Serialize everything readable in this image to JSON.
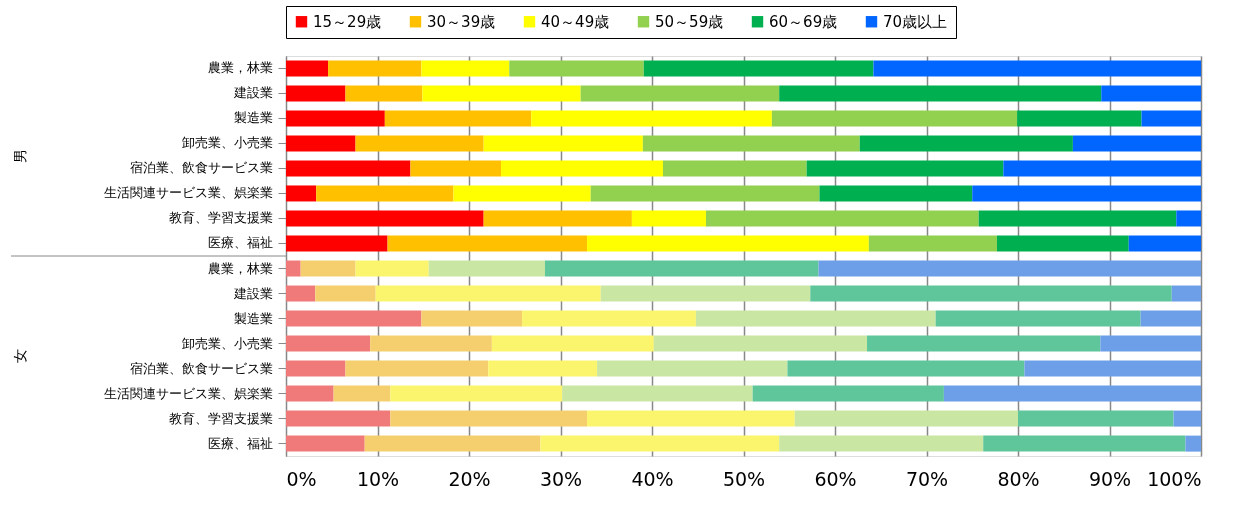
{
  "chart_data": {
    "type": "bar",
    "orientation": "horizontal",
    "stacked": true,
    "categories": [
      "農業，林業",
      "建設業",
      "製造業",
      "卸売業、小売業",
      "宿泊業、飲食サービス業",
      "生活関連サービス業、娯楽業",
      "教育、学習支援業",
      "医療、福祉",
      "農業，林業",
      "建設業",
      "製造業",
      "卸売業、小売業",
      "宿泊業、飲食サービス業",
      "生活関連サービス業、娯楽業",
      "教育、学習支援業",
      "医療、福祉"
    ],
    "annotations": [
      "男",
      "女"
    ],
    "series": [
      {
        "name": "15～29歳",
        "color": "#ff0000",
        "colors": [
          "#ff0000",
          "#ff0000",
          "#ff0000",
          "#ff0000",
          "#ff0000",
          "#ff0000",
          "#ff0000",
          "#ff0000",
          "#f07a7a",
          "#f07a7a",
          "#f07a7a",
          "#f07a7a",
          "#f07a7a",
          "#f07a7a",
          "#f07a7a",
          "#f07a7a"
        ],
        "values": [
          4.6,
          6.5,
          10.8,
          7.6,
          13.6,
          3.3,
          21.6,
          11.1,
          1.6,
          3.2,
          14.8,
          9.2,
          6.5,
          5.2,
          11.4,
          8.6
        ]
      },
      {
        "name": "30～39歳",
        "color": "#ffc000",
        "colors": [
          "#ffc000",
          "#ffc000",
          "#ffc000",
          "#ffc000",
          "#ffc000",
          "#ffc000",
          "#ffc000",
          "#ffc000",
          "#f5cf6e",
          "#f5cf6e",
          "#f5cf6e",
          "#f5cf6e",
          "#f5cf6e",
          "#f5cf6e",
          "#f5cf6e",
          "#f5cf6e"
        ],
        "values": [
          10.2,
          8.4,
          16.0,
          14.0,
          9.9,
          15.0,
          16.2,
          21.8,
          6.0,
          6.6,
          11.0,
          13.3,
          15.6,
          6.2,
          21.5,
          19.2
        ]
      },
      {
        "name": "40～49歳",
        "color": "#ffff00",
        "colors": [
          "#ffff00",
          "#ffff00",
          "#ffff00",
          "#ffff00",
          "#ffff00",
          "#ffff00",
          "#ffff00",
          "#ffff00",
          "#fbf56e",
          "#fbf56e",
          "#fbf56e",
          "#fbf56e",
          "#fbf56e",
          "#fbf56e",
          "#fbf56e",
          "#fbf56e"
        ],
        "values": [
          9.6,
          17.3,
          26.3,
          17.4,
          17.7,
          15.0,
          8.1,
          30.8,
          8.0,
          24.6,
          19.0,
          17.7,
          11.9,
          18.8,
          22.7,
          26.1
        ]
      },
      {
        "name": "50～59歳",
        "color": "#92d050",
        "colors": [
          "#92d050",
          "#92d050",
          "#92d050",
          "#92d050",
          "#92d050",
          "#92d050",
          "#92d050",
          "#92d050",
          "#c9e6a3",
          "#c9e6a3",
          "#c9e6a3",
          "#c9e6a3",
          "#c9e6a3",
          "#c9e6a3",
          "#c9e6a3",
          "#c9e6a3"
        ],
        "values": [
          14.7,
          21.7,
          26.8,
          23.7,
          15.7,
          25.0,
          29.8,
          14.0,
          12.7,
          22.9,
          26.2,
          23.3,
          20.8,
          20.8,
          24.4,
          22.3
        ]
      },
      {
        "name": "60～69歳",
        "color": "#00b050",
        "colors": [
          "#00b050",
          "#00b050",
          "#00b050",
          "#00b050",
          "#00b050",
          "#00b050",
          "#00b050",
          "#00b050",
          "#5ec69a",
          "#5ec69a",
          "#5ec69a",
          "#5ec69a",
          "#5ec69a",
          "#5ec69a",
          "#5ec69a",
          "#5ec69a"
        ],
        "values": [
          25.1,
          35.2,
          13.6,
          23.3,
          21.5,
          16.7,
          21.6,
          14.4,
          29.9,
          39.5,
          22.4,
          25.5,
          25.9,
          20.9,
          17.0,
          22.1
        ]
      },
      {
        "name": "70歳以上",
        "color": "#0066ff",
        "colors": [
          "#0066ff",
          "#0066ff",
          "#0066ff",
          "#0066ff",
          "#0066ff",
          "#0066ff",
          "#0066ff",
          "#0066ff",
          "#6d9ee8",
          "#6d9ee8",
          "#6d9ee8",
          "#6d9ee8",
          "#6d9ee8",
          "#6d9ee8",
          "#6d9ee8",
          "#6d9ee8"
        ],
        "values": [
          35.8,
          10.9,
          6.5,
          14.0,
          21.6,
          25.0,
          2.7,
          7.9,
          41.8,
          3.2,
          6.6,
          11.0,
          19.3,
          28.1,
          3.0,
          1.7
        ]
      }
    ],
    "xlim": [
      0,
      100
    ],
    "xticks": [
      {
        "value": 0,
        "label": "0%"
      },
      {
        "value": 10,
        "label": "10%"
      },
      {
        "value": 20,
        "label": "20%"
      },
      {
        "value": 30,
        "label": "30%"
      },
      {
        "value": 40,
        "label": "40%"
      },
      {
        "value": 50,
        "label": "50%"
      },
      {
        "value": 60,
        "label": "60%"
      },
      {
        "value": 70,
        "label": "70%"
      },
      {
        "value": 80,
        "label": "80%"
      },
      {
        "value": 90,
        "label": "90%"
      },
      {
        "value": 100,
        "label": "100%"
      }
    ],
    "grid": "x",
    "legend": "top"
  }
}
